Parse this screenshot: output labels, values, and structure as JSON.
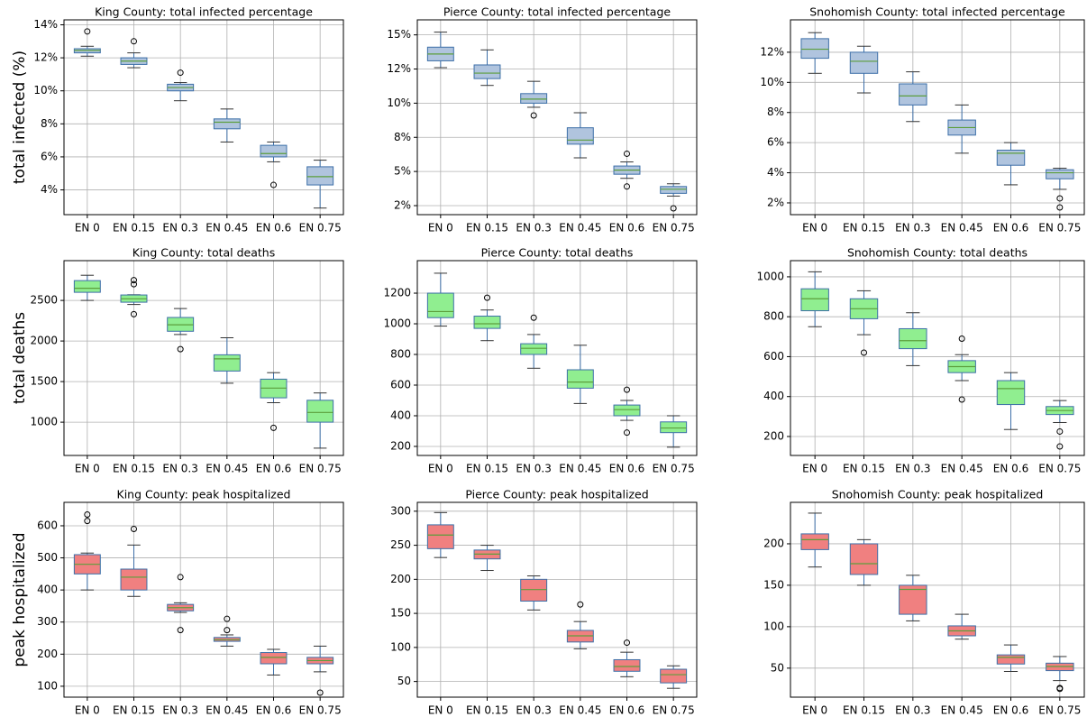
{
  "chart_data": [
    {
      "type": "box",
      "title": "King County: total infected percentage",
      "ylabel": "total infected (%)",
      "categories": [
        "EN 0",
        "EN 0.15",
        "EN 0.3",
        "EN 0.45",
        "EN 0.6",
        "EN 0.75"
      ],
      "color": "#b0c4de",
      "boxes": [
        {
          "whislo": 12.1,
          "q1": 12.3,
          "med": 12.45,
          "q3": 12.55,
          "whishi": 12.7,
          "fliers": [
            13.6
          ]
        },
        {
          "whislo": 11.4,
          "q1": 11.6,
          "med": 11.8,
          "q3": 12.0,
          "whishi": 12.3,
          "fliers": [
            13.0
          ]
        },
        {
          "whislo": 9.4,
          "q1": 10.0,
          "med": 10.2,
          "q3": 10.4,
          "whishi": 10.5,
          "fliers": [
            11.1
          ]
        },
        {
          "whislo": 6.9,
          "q1": 7.7,
          "med": 8.1,
          "q3": 8.3,
          "whishi": 8.9
        },
        {
          "whislo": 5.7,
          "q1": 6.0,
          "med": 6.2,
          "q3": 6.7,
          "whishi": 6.9,
          "fliers": [
            4.3
          ]
        },
        {
          "whislo": 2.9,
          "q1": 4.3,
          "med": 4.8,
          "q3": 5.4,
          "whishi": 5.8
        }
      ],
      "ylim": [
        2.5,
        14.3
      ],
      "yticks": [
        {
          "value": 4,
          "label": "4%"
        },
        {
          "value": 6,
          "label": "6%"
        },
        {
          "value": 8,
          "label": "8%"
        },
        {
          "value": 10,
          "label": "10%"
        },
        {
          "value": 12,
          "label": "12%"
        },
        {
          "value": 14,
          "label": "14%"
        }
      ],
      "grid": true
    },
    {
      "type": "box",
      "title": "Pierce County: total infected percentage",
      "categories": [
        "EN 0",
        "EN 0.15",
        "EN 0.3",
        "EN 0.45",
        "EN 0.6",
        "EN 0.75"
      ],
      "color": "#b0c4de",
      "boxes": [
        {
          "whislo": 12.6,
          "q1": 13.1,
          "med": 13.6,
          "q3": 14.1,
          "whishi": 15.2
        },
        {
          "whislo": 11.3,
          "q1": 11.8,
          "med": 12.2,
          "q3": 12.8,
          "whishi": 13.9
        },
        {
          "whislo": 9.7,
          "q1": 10.0,
          "med": 10.3,
          "q3": 10.7,
          "whishi": 11.6,
          "fliers": [
            9.1
          ]
        },
        {
          "whislo": 6.0,
          "q1": 7.0,
          "med": 7.3,
          "q3": 8.2,
          "whishi": 9.3
        },
        {
          "whislo": 4.5,
          "q1": 4.8,
          "med": 5.1,
          "q3": 5.4,
          "whishi": 5.7,
          "fliers": [
            6.3,
            3.9
          ]
        },
        {
          "whislo": 3.2,
          "q1": 3.4,
          "med": 3.7,
          "q3": 3.9,
          "whishi": 4.1,
          "fliers": [
            2.3
          ]
        }
      ],
      "ylim": [
        1.84,
        16.1
      ],
      "yticks": [
        {
          "value": 2.5,
          "label": "2%"
        },
        {
          "value": 5,
          "label": "5%"
        },
        {
          "value": 7.5,
          "label": "8%"
        },
        {
          "value": 10,
          "label": "10%"
        },
        {
          "value": 12.5,
          "label": "12%"
        },
        {
          "value": 15,
          "label": "15%"
        }
      ],
      "grid": true
    },
    {
      "type": "box",
      "title": "Snohomish County: total infected percentage",
      "categories": [
        "EN 0",
        "EN 0.15",
        "EN 0.3",
        "EN 0.45",
        "EN 0.6",
        "EN 0.75"
      ],
      "color": "#b0c4de",
      "boxes": [
        {
          "whislo": 10.6,
          "q1": 11.6,
          "med": 12.2,
          "q3": 12.9,
          "whishi": 13.3
        },
        {
          "whislo": 9.3,
          "q1": 10.6,
          "med": 11.4,
          "q3": 12.0,
          "whishi": 12.4
        },
        {
          "whislo": 7.4,
          "q1": 8.5,
          "med": 9.1,
          "q3": 9.9,
          "whishi": 10.7
        },
        {
          "whislo": 5.3,
          "q1": 6.5,
          "med": 7.0,
          "q3": 7.5,
          "whishi": 8.5
        },
        {
          "whislo": 3.2,
          "q1": 4.5,
          "med": 5.3,
          "q3": 5.5,
          "whishi": 6.0
        },
        {
          "whislo": 2.9,
          "q1": 3.6,
          "med": 4.0,
          "q3": 4.2,
          "whishi": 4.3,
          "fliers": [
            2.3,
            1.7
          ]
        }
      ],
      "ylim": [
        1.22,
        14.15
      ],
      "yticks": [
        {
          "value": 2,
          "label": "2%"
        },
        {
          "value": 4,
          "label": "4%"
        },
        {
          "value": 6,
          "label": "6%"
        },
        {
          "value": 8,
          "label": "8%"
        },
        {
          "value": 10,
          "label": "10%"
        },
        {
          "value": 12,
          "label": "12%"
        }
      ],
      "grid": true
    },
    {
      "type": "box",
      "title": "King County: total deaths",
      "ylabel": "total deaths",
      "categories": [
        "EN 0",
        "EN 0.15",
        "EN 0.3",
        "EN 0.45",
        "EN 0.6",
        "EN 0.75"
      ],
      "color": "#90ee90",
      "boxes": [
        {
          "whislo": 2500,
          "q1": 2600,
          "med": 2650,
          "q3": 2744,
          "whishi": 2810
        },
        {
          "whislo": 2450,
          "q1": 2478,
          "med": 2520,
          "q3": 2567,
          "whishi": 2570,
          "fliers": [
            2700,
            2750,
            2330
          ]
        },
        {
          "whislo": 2080,
          "q1": 2120,
          "med": 2200,
          "q3": 2290,
          "whishi": 2400,
          "fliers": [
            1900
          ]
        },
        {
          "whislo": 1480,
          "q1": 1630,
          "med": 1780,
          "q3": 1830,
          "whishi": 2040
        },
        {
          "whislo": 1240,
          "q1": 1300,
          "med": 1420,
          "q3": 1530,
          "whishi": 1610,
          "fliers": [
            930
          ]
        },
        {
          "whislo": 680,
          "q1": 1000,
          "med": 1120,
          "q3": 1270,
          "whishi": 1360
        }
      ],
      "ylim": [
        590,
        2990
      ],
      "yticks": [
        1000,
        1500,
        2000,
        2500
      ],
      "grid": true
    },
    {
      "type": "box",
      "title": "Pierce County: total deaths",
      "categories": [
        "EN 0",
        "EN 0.15",
        "EN 0.3",
        "EN 0.45",
        "EN 0.6",
        "EN 0.75"
      ],
      "color": "#90ee90",
      "boxes": [
        {
          "whislo": 985,
          "q1": 1040,
          "med": 1080,
          "q3": 1200,
          "whishi": 1330
        },
        {
          "whislo": 890,
          "q1": 970,
          "med": 1000,
          "q3": 1050,
          "whishi": 1090,
          "fliers": [
            1170
          ]
        },
        {
          "whislo": 710,
          "q1": 800,
          "med": 840,
          "q3": 870,
          "whishi": 930,
          "fliers": [
            1040
          ]
        },
        {
          "whislo": 480,
          "q1": 580,
          "med": 620,
          "q3": 700,
          "whishi": 860
        },
        {
          "whislo": 370,
          "q1": 400,
          "med": 440,
          "q3": 470,
          "whishi": 500,
          "fliers": [
            570,
            290
          ]
        },
        {
          "whislo": 195,
          "q1": 290,
          "med": 320,
          "q3": 360,
          "whishi": 400
        }
      ],
      "ylim": [
        141,
        1412
      ],
      "yticks": [
        200,
        400,
        600,
        800,
        1000,
        1200
      ],
      "grid": true
    },
    {
      "type": "box",
      "title": "Snohomish County: total deaths",
      "categories": [
        "EN 0",
        "EN 0.15",
        "EN 0.3",
        "EN 0.45",
        "EN 0.6",
        "EN 0.75"
      ],
      "color": "#90ee90",
      "boxes": [
        {
          "whislo": 750,
          "q1": 830,
          "med": 890,
          "q3": 940,
          "whishi": 1025
        },
        {
          "whislo": 710,
          "q1": 790,
          "med": 840,
          "q3": 890,
          "whishi": 930,
          "fliers": [
            620
          ]
        },
        {
          "whislo": 555,
          "q1": 640,
          "med": 680,
          "q3": 740,
          "whishi": 820
        },
        {
          "whislo": 480,
          "q1": 520,
          "med": 550,
          "q3": 580,
          "whishi": 610,
          "fliers": [
            690,
            385
          ]
        },
        {
          "whislo": 235,
          "q1": 360,
          "med": 440,
          "q3": 480,
          "whishi": 520
        },
        {
          "whislo": 270,
          "q1": 310,
          "med": 330,
          "q3": 350,
          "whishi": 380,
          "fliers": [
            225,
            150
          ]
        }
      ],
      "ylim": [
        105,
        1081
      ],
      "yticks": [
        200,
        400,
        600,
        800,
        1000
      ],
      "grid": true
    },
    {
      "type": "box",
      "title": "King County: peak hospitalized",
      "ylabel": "peak hospitalized",
      "categories": [
        "EN 0",
        "EN 0.15",
        "EN 0.3",
        "EN 0.45",
        "EN 0.6",
        "EN 0.75"
      ],
      "color": "#f08080",
      "boxes": [
        {
          "whislo": 400,
          "q1": 450,
          "med": 480,
          "q3": 510,
          "whishi": 515,
          "fliers": [
            615,
            635
          ]
        },
        {
          "whislo": 380,
          "q1": 400,
          "med": 440,
          "q3": 465,
          "whishi": 540,
          "fliers": [
            590
          ]
        },
        {
          "whislo": 330,
          "q1": 335,
          "med": 345,
          "q3": 355,
          "whishi": 360,
          "fliers": [
            440,
            275
          ]
        },
        {
          "whislo": 225,
          "q1": 240,
          "med": 245,
          "q3": 252,
          "whishi": 260,
          "fliers": [
            310,
            275
          ]
        },
        {
          "whislo": 135,
          "q1": 170,
          "med": 190,
          "q3": 205,
          "whishi": 215
        },
        {
          "whislo": 145,
          "q1": 170,
          "med": 180,
          "q3": 190,
          "whishi": 225,
          "fliers": [
            80
          ]
        }
      ],
      "ylim": [
        66,
        673
      ],
      "yticks": [
        100,
        200,
        300,
        400,
        500,
        600
      ],
      "grid": true
    },
    {
      "type": "box",
      "title": "Pierce County: peak hospitalized",
      "categories": [
        "EN 0",
        "EN 0.15",
        "EN 0.3",
        "EN 0.45",
        "EN 0.6",
        "EN 0.75"
      ],
      "color": "#f08080",
      "boxes": [
        {
          "whislo": 232,
          "q1": 245,
          "med": 265,
          "q3": 280,
          "whishi": 298
        },
        {
          "whislo": 213,
          "q1": 230,
          "med": 237,
          "q3": 243,
          "whishi": 250
        },
        {
          "whislo": 155,
          "q1": 168,
          "med": 185,
          "q3": 200,
          "whishi": 205
        },
        {
          "whislo": 98,
          "q1": 108,
          "med": 117,
          "q3": 125,
          "whishi": 138,
          "fliers": [
            163
          ]
        },
        {
          "whislo": 57,
          "q1": 65,
          "med": 72,
          "q3": 82,
          "whishi": 93,
          "fliers": [
            107
          ]
        },
        {
          "whislo": 40,
          "q1": 48,
          "med": 60,
          "q3": 68,
          "whishi": 73
        }
      ],
      "ylim": [
        27,
        313
      ],
      "yticks": [
        50,
        100,
        150,
        200,
        250,
        300
      ],
      "grid": true
    },
    {
      "type": "box",
      "title": "Snohomish County: peak hospitalized",
      "categories": [
        "EN 0",
        "EN 0.15",
        "EN 0.3",
        "EN 0.45",
        "EN 0.6",
        "EN 0.75"
      ],
      "color": "#f08080",
      "boxes": [
        {
          "whislo": 172,
          "q1": 193,
          "med": 205,
          "q3": 212,
          "whishi": 237
        },
        {
          "whislo": 150,
          "q1": 163,
          "med": 176,
          "q3": 200,
          "whishi": 205
        },
        {
          "whislo": 107,
          "q1": 115,
          "med": 145,
          "q3": 150,
          "whishi": 162
        },
        {
          "whislo": 85,
          "q1": 89,
          "med": 95,
          "q3": 101,
          "whishi": 115
        },
        {
          "whislo": 46,
          "q1": 55,
          "med": 63,
          "q3": 66,
          "whishi": 78
        },
        {
          "whislo": 35,
          "q1": 47,
          "med": 52,
          "q3": 56,
          "whishi": 64,
          "fliers": [
            26,
            25
          ]
        }
      ],
      "ylim": [
        15,
        250
      ],
      "yticks": [
        50,
        100,
        150,
        200
      ],
      "grid": true
    }
  ]
}
